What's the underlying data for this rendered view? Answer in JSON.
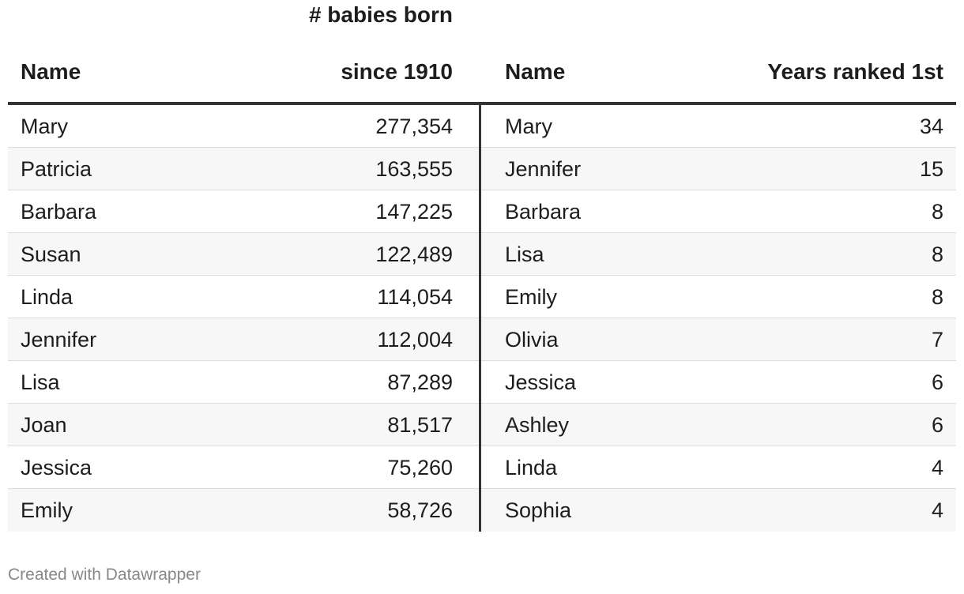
{
  "chart_data": {
    "type": "table",
    "columns": [
      "Name",
      "# babies born since 1910",
      "Name",
      "Years ranked 1st"
    ],
    "header": {
      "name1": "Name",
      "num1_line1": "# babies born",
      "num1_line2": "since 1910",
      "name2": "Name",
      "num2": "Years ranked 1st"
    },
    "rows": [
      {
        "name1": "Mary",
        "babies": "277,354",
        "name2": "Mary",
        "years": "34"
      },
      {
        "name1": "Patricia",
        "babies": "163,555",
        "name2": "Jennifer",
        "years": "15"
      },
      {
        "name1": "Barbara",
        "babies": "147,225",
        "name2": "Barbara",
        "years": "8"
      },
      {
        "name1": "Susan",
        "babies": "122,489",
        "name2": "Lisa",
        "years": "8"
      },
      {
        "name1": "Linda",
        "babies": "114,054",
        "name2": "Emily",
        "years": "8"
      },
      {
        "name1": "Jennifer",
        "babies": "112,004",
        "name2": "Olivia",
        "years": "7"
      },
      {
        "name1": "Lisa",
        "babies": "87,289",
        "name2": "Jessica",
        "years": "6"
      },
      {
        "name1": "Joan",
        "babies": "81,517",
        "name2": "Ashley",
        "years": "6"
      },
      {
        "name1": "Jessica",
        "babies": "75,260",
        "name2": "Linda",
        "years": "4"
      },
      {
        "name1": "Emily",
        "babies": "58,726",
        "name2": "Sophia",
        "years": "4"
      }
    ]
  },
  "footer": {
    "credit": "Created with Datawrapper"
  },
  "colors": {
    "text": "#1d1d1d",
    "rule": "#333333",
    "stripe": "#f7f7f7",
    "footer": "#888888"
  }
}
